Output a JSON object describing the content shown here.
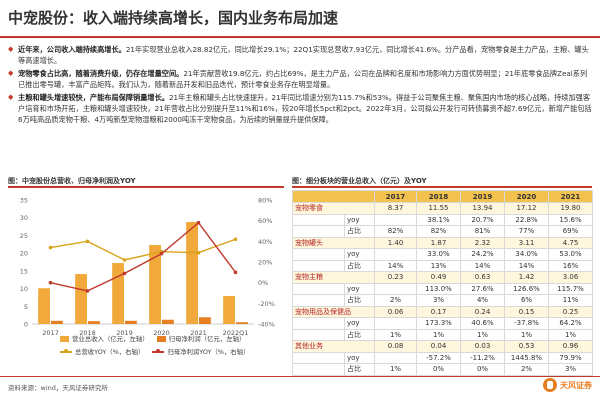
{
  "page": {
    "title": "中宠股份：收入端持续高增长，国内业务布局加速",
    "bullets": [
      {
        "lead": "近年来，公司收入端持续高增长。",
        "text": "21年实现营业总收入28.82亿元，同比增长29.1%；22Q1实现总营收7.93亿元，同比增长41.6%。分产品看，宠物零食是主力产品，主粮、罐头等高速增长。"
      },
      {
        "lead": "宠物零食占比高，随着消费升级，仍存在增量空间。",
        "text": "21年贡献营收19.8亿元，约占比69%，是主力产品，公司在品牌和名度和市场影响力方面优势明显；21年底零食品牌Zeal系列已推出零号罐，丰富产品矩阵。我们认为，随着新品开发和旧品迭代，预计零食业务存在明显增量。"
      },
      {
        "lead": "主粮和罐头增速较快，产能布局保障销量增长。",
        "text": "21年主粮和罐头占比快速提升，21年同比增速分别为115.7%和53%。得益于公司聚焦主粮、聚焦国内市场的核心战略，持续加强客户培育和市场开拓，主粮和罐头增速较快，21年营收占比分别提升至11%和16%，较20年增长5pct和2pct。2022年3月，公司拟公开发行可转债募资不超7.69亿元，新增产能包括6万吨高品质宠物干粮、4万吨新型宠物湿粮和2000吨冻干宠物食品，为后续的销量提升提供保障。"
      }
    ],
    "left_figure_title": "图：中宠股份总营收、归母净利润及YOY",
    "right_figure_title": "图：细分板块的营业总收入（亿元）及YOY",
    "legend": {
      "bar1": "营业总收入（亿元，左轴）",
      "bar2": "归母净利润（亿元，左轴）",
      "line1": "总营收YOY（%，右轴）",
      "line2": "归母净利润YOY（%，右轴）"
    },
    "source": "资料来源：wind，天风证券研究所",
    "logo_text": "天风证券",
    "colors": {
      "accent": "#c0392b",
      "bar_revenue": "#f2a93b",
      "bar_profit": "#e67e22",
      "line_revenue_yoy": "#d9a21b",
      "line_profit_yoy": "#c0392b",
      "table_header": "#f2c14e"
    }
  },
  "table": {
    "headers": [
      "",
      "",
      "2017",
      "2018",
      "2019",
      "2020",
      "2021"
    ],
    "segments": [
      {
        "name": "宠物零食",
        "values": [
          "8.37",
          "11.55",
          "13.94",
          "17.12",
          "19.80"
        ],
        "yoy": [
          "",
          "38.1%",
          "20.7%",
          "22.8%",
          "15.6%"
        ],
        "share": [
          "82%",
          "82%",
          "81%",
          "77%",
          "69%"
        ]
      },
      {
        "name": "宠物罐头",
        "values": [
          "1.40",
          "1.87",
          "2.32",
          "3.11",
          "4.75"
        ],
        "yoy": [
          "",
          "33.0%",
          "24.2%",
          "34.0%",
          "53.0%"
        ],
        "share": [
          "14%",
          "13%",
          "14%",
          "14%",
          "16%"
        ]
      },
      {
        "name": "宠物主粮",
        "values": [
          "0.23",
          "0.49",
          "0.63",
          "1.42",
          "3.06"
        ],
        "yoy": [
          "",
          "113.0%",
          "27.6%",
          "126.6%",
          "115.7%"
        ],
        "share": [
          "2%",
          "3%",
          "4%",
          "6%",
          "11%"
        ]
      },
      {
        "name": "宠物用品及保健品",
        "values": [
          "0.06",
          "0.17",
          "0.24",
          "0.15",
          "0.25"
        ],
        "yoy": [
          "",
          "173.3%",
          "40.6%",
          "-37.8%",
          "64.2%"
        ],
        "share": [
          "1%",
          "1%",
          "1%",
          "1%",
          "1%"
        ]
      },
      {
        "name": "其他业务",
        "values": [
          "0.08",
          "0.04",
          "0.03",
          "0.53",
          "0.96"
        ],
        "yoy": [
          "",
          "-57.2%",
          "-11.2%",
          "1445.8%",
          "79.9%"
        ],
        "share": [
          "1%",
          "0%",
          "0%",
          "2%",
          "3%"
        ]
      }
    ],
    "yoy_label": "yoy",
    "share_label": "占比"
  },
  "chart_data": {
    "type": "bar",
    "categories": [
      "2017",
      "2018",
      "2019",
      "2020",
      "2021",
      "2022Q1"
    ],
    "series": [
      {
        "name": "营业总收入（亿元，左轴）",
        "values": [
          10.1,
          14.1,
          17.2,
          22.3,
          28.8,
          7.9
        ],
        "axis": "left",
        "kind": "bar"
      },
      {
        "name": "归母净利润（亿元，左轴）",
        "values": [
          0.9,
          0.8,
          0.9,
          1.2,
          1.9,
          0.5
        ],
        "axis": "left",
        "kind": "bar"
      },
      {
        "name": "总营收YOY（%，右轴）",
        "values": [
          34,
          40,
          22,
          30,
          29,
          42
        ],
        "axis": "right",
        "kind": "line"
      },
      {
        "name": "归母净利润YOY（%，右轴）",
        "values": [
          0,
          -8,
          9,
          28,
          58,
          10
        ],
        "axis": "right",
        "kind": "line"
      }
    ],
    "ylim_left": [
      0,
      35
    ],
    "yticks_left": [
      "0",
      "5",
      "10",
      "15",
      "20",
      "25",
      "30",
      "35"
    ],
    "ylim_right": [
      -40,
      80
    ],
    "yticks_right": [
      "-40%",
      "-20%",
      "0%",
      "20%",
      "40%",
      "60%",
      "80%"
    ],
    "grid": false,
    "legend_position": "bottom"
  }
}
